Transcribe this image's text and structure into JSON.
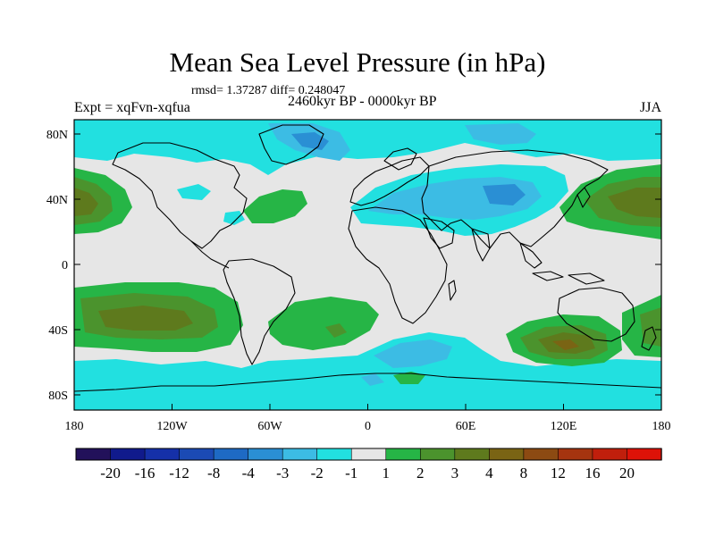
{
  "title": "Mean Sea Level Pressure (in hPa)",
  "stats": "rmsd= 1.37287 diff= 0.248047",
  "expt": "Expt = xqFvn-xqfua",
  "period": "2460kyr BP - 0000kyr BP",
  "season": "JJA",
  "lat_labels": [
    "80N",
    "40N",
    "0",
    "40S",
    "80S"
  ],
  "lon_labels": [
    "180",
    "120W",
    "60W",
    "0",
    "60E",
    "120E",
    "180"
  ],
  "colorbar": {
    "colors": [
      "#22115a",
      "#101a8c",
      "#1530a8",
      "#1b4ab4",
      "#1e6ac4",
      "#2a8fd4",
      "#3cbce4",
      "#22e0e0",
      "#e6e6e6",
      "#26b546",
      "#4b932d",
      "#5e7a1d",
      "#7a6414",
      "#8c4a12",
      "#a5340f",
      "#c01f0c",
      "#dd1208"
    ],
    "labels": [
      "-20",
      "-16",
      "-12",
      "-8",
      "-4",
      "-3",
      "-2",
      "-1",
      "1",
      "2",
      "3",
      "4",
      "8",
      "12",
      "16",
      "20"
    ]
  },
  "palette": {
    "neutral": "#e6e6e6",
    "cyan": "#22e0e0",
    "sky": "#3cbce4",
    "blue": "#2a8fd4",
    "green": "#26b546",
    "olive": "#4b932d",
    "dark_olive": "#5e7a1d",
    "brown": "#7a6414"
  }
}
